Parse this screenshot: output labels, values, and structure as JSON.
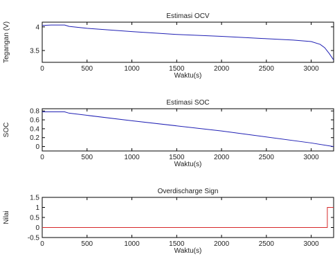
{
  "chart_data": [
    {
      "type": "line",
      "title": "Estimasi OCV",
      "xlabel": "Waktu(s)",
      "ylabel": "Tegangan (V)",
      "xlim": [
        0,
        3250
      ],
      "ylim": [
        3.25,
        4.1
      ],
      "x_ticks": [
        0,
        500,
        1000,
        1500,
        2000,
        2500,
        3000
      ],
      "x_tick_labels": [
        "0",
        "500",
        "1000",
        "1500",
        "2000",
        "2500",
        "3000"
      ],
      "y_ticks": [
        3.5,
        4
      ],
      "y_tick_labels": [
        "3.5",
        "4"
      ],
      "grid": false,
      "series": [
        {
          "color": "#1f1fb4",
          "x": [
            0,
            100,
            250,
            300,
            500,
            1000,
            1500,
            2000,
            2500,
            2800,
            3000,
            3100,
            3150,
            3200,
            3250
          ],
          "y": [
            4.03,
            4.04,
            4.04,
            4.01,
            3.97,
            3.9,
            3.84,
            3.8,
            3.75,
            3.72,
            3.69,
            3.63,
            3.56,
            3.44,
            3.3
          ]
        }
      ]
    },
    {
      "type": "line",
      "title": "Estimasi SOC",
      "xlabel": "Waktu(s)",
      "ylabel": "SOC",
      "xlim": [
        0,
        3250
      ],
      "ylim": [
        -0.1,
        0.85
      ],
      "x_ticks": [
        0,
        500,
        1000,
        1500,
        2000,
        2500,
        3000
      ],
      "x_tick_labels": [
        "0",
        "500",
        "1000",
        "1500",
        "2000",
        "2500",
        "3000"
      ],
      "y_ticks": [
        0,
        0.2,
        0.4,
        0.6,
        0.8
      ],
      "y_tick_labels": [
        "0",
        "0.2",
        "0.4",
        "0.6",
        "0.8"
      ],
      "grid": false,
      "series": [
        {
          "color": "#1f1fb4",
          "x": [
            0,
            250,
            300,
            1000,
            2000,
            3000,
            3250
          ],
          "y": [
            0.78,
            0.78,
            0.75,
            0.58,
            0.35,
            0.08,
            0.0
          ]
        }
      ]
    },
    {
      "type": "line",
      "title": "Overdischarge Sign",
      "xlabel": "Waktu(s)",
      "ylabel": "Nilai",
      "xlim": [
        0,
        3250
      ],
      "ylim": [
        -0.5,
        1.5
      ],
      "x_ticks": [
        0,
        500,
        1000,
        1500,
        2000,
        2500,
        3000
      ],
      "x_tick_labels": [
        "0",
        "500",
        "1000",
        "1500",
        "2000",
        "2500",
        "3000"
      ],
      "y_ticks": [
        -0.5,
        0,
        0.5,
        1,
        1.5
      ],
      "y_tick_labels": [
        "-0.5",
        "0",
        "0.5",
        "1",
        "1.5"
      ],
      "grid": false,
      "series": [
        {
          "color": "#d62728",
          "x": [
            0,
            3180,
            3180,
            3250
          ],
          "y": [
            0,
            0,
            1,
            1
          ]
        }
      ]
    }
  ]
}
